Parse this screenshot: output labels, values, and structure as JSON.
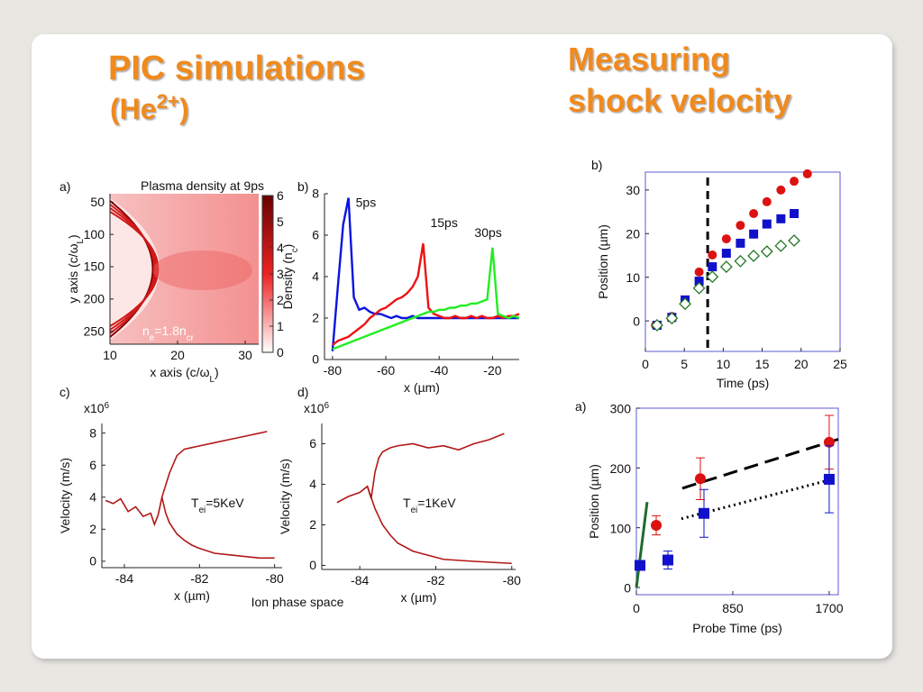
{
  "slide": {
    "title": "PIC simulations",
    "subtitle": [
      "(He",
      "2+",
      ")"
    ],
    "right_title": [
      "Measuring",
      "shock velocity"
    ],
    "caption": "Ion phase space"
  },
  "chart_data": [
    {
      "type": "heatmap",
      "panel": "a)",
      "title": "Plasma density at 9ps",
      "xlabel": [
        "x axis (c/ω",
        "L",
        ")"
      ],
      "ylabel": [
        "y axis (c/ω",
        "L",
        ")"
      ],
      "annotation": [
        "n",
        "e",
        "=1.8n",
        "cr"
      ],
      "xlim": [
        10,
        32
      ],
      "ylim": [
        37,
        270
      ],
      "y_reversed": true,
      "xticks": [
        10,
        20,
        30
      ],
      "yticks": [
        50,
        100,
        150,
        200,
        250
      ],
      "colorbar_lim": [
        0,
        6
      ],
      "colorbar_ticks": [
        0,
        1,
        2,
        3,
        4,
        5,
        6
      ],
      "colormap": [
        "#ffffff",
        "#ee2222",
        "#6a0000"
      ]
    },
    {
      "type": "line",
      "panel": "b)",
      "xlabel": "x (µm)",
      "ylabel": [
        "Density (n",
        "c",
        ")"
      ],
      "xlim": [
        -83,
        -10
      ],
      "ylim": [
        0,
        8
      ],
      "xticks": [
        -80,
        -60,
        -40,
        -20
      ],
      "yticks": [
        0,
        2,
        4,
        6,
        8
      ],
      "x": [
        -80,
        -78,
        -76,
        -74,
        -72,
        -70,
        -68,
        -66,
        -64,
        -62,
        -60,
        -58,
        -56,
        -54,
        -52,
        -50,
        -48,
        -46,
        -44,
        -42,
        -40,
        -38,
        -36,
        -34,
        -32,
        -30,
        -28,
        -26,
        -24,
        -22,
        -20,
        -18,
        -16,
        -14,
        -12,
        -10
      ],
      "series": [
        {
          "name": "5ps",
          "color": "#0a14e0",
          "values": [
            0.4,
            3.5,
            6.5,
            7.8,
            3.0,
            2.4,
            2.5,
            2.3,
            2.2,
            2.2,
            2.1,
            2.0,
            2.1,
            2.0,
            2.0,
            2.1,
            2.0,
            2.0,
            2.0,
            2.0,
            2.0,
            2.0,
            2.0,
            2.0,
            2.0,
            2.0,
            2.0,
            2.0,
            2.0,
            2.0,
            2.0,
            2.0,
            2.0,
            2.0,
            2.0,
            2.0
          ]
        },
        {
          "name": "15ps",
          "color": "#ee1111",
          "values": [
            0.7,
            0.9,
            1.0,
            1.1,
            1.3,
            1.5,
            1.7,
            2.0,
            2.2,
            2.4,
            2.5,
            2.7,
            2.9,
            3.0,
            3.2,
            3.5,
            4.0,
            5.6,
            2.5,
            2.2,
            2.1,
            2.0,
            2.0,
            2.1,
            2.0,
            2.0,
            2.1,
            2.0,
            2.1,
            2.0,
            2.0,
            2.1,
            2.0,
            2.1,
            2.1,
            2.2
          ]
        },
        {
          "name": "30ps",
          "color": "#22ee22",
          "values": [
            0.5,
            0.6,
            0.7,
            0.8,
            0.9,
            1.0,
            1.1,
            1.2,
            1.3,
            1.4,
            1.5,
            1.6,
            1.7,
            1.8,
            1.9,
            2.0,
            2.1,
            2.2,
            2.3,
            2.3,
            2.4,
            2.4,
            2.5,
            2.5,
            2.6,
            2.6,
            2.7,
            2.7,
            2.8,
            2.9,
            5.4,
            2.2,
            2.1,
            2.0,
            2.1,
            2.0
          ]
        }
      ]
    },
    {
      "type": "line",
      "panel": "c)",
      "multiplier": [
        "x10",
        "6"
      ],
      "xlabel": "x (µm)",
      "ylabel": "Velocity (m/s)",
      "annotation": [
        "T",
        "ei",
        "=5KeV"
      ],
      "xlim": [
        -84.6,
        -79.8
      ],
      "ylim": [
        -0.4,
        8.6
      ],
      "xticks": [
        -84,
        -82,
        -80
      ],
      "yticks": [
        0,
        2,
        4,
        6,
        8
      ],
      "series": [
        {
          "color": "#b01818",
          "x": [
            -84.5,
            -84.3,
            -84.1,
            -83.9,
            -83.7,
            -83.5,
            -83.3,
            -83.2,
            -83.1,
            -83.0,
            -82.8,
            -82.6,
            -82.4,
            -82.2,
            -82.0,
            -81.6,
            -81.2,
            -80.8,
            -80.4,
            -80.2
          ],
          "values": [
            3.8,
            3.6,
            3.9,
            3.1,
            3.4,
            2.8,
            3.0,
            2.3,
            2.9,
            4.0,
            5.5,
            6.6,
            7.0,
            7.1,
            7.2,
            7.4,
            7.6,
            7.8,
            8.0,
            8.1
          ]
        },
        {
          "color": "#b01818",
          "x": [
            -83.0,
            -82.9,
            -82.8,
            -82.6,
            -82.4,
            -82.2,
            -82.0,
            -81.6,
            -81.2,
            -80.8,
            -80.4,
            -80.0
          ],
          "values": [
            4.0,
            3.0,
            2.4,
            1.7,
            1.3,
            1.0,
            0.8,
            0.5,
            0.4,
            0.3,
            0.2,
            0.2
          ]
        }
      ]
    },
    {
      "type": "line",
      "panel": "d)",
      "multiplier": [
        "x10",
        "6"
      ],
      "xlabel": "x (µm)",
      "ylabel": "Velocity (m/s)",
      "annotation": [
        "T",
        "ei",
        "=1KeV"
      ],
      "xlim": [
        -85,
        -79.9
      ],
      "ylim": [
        -0.2,
        7
      ],
      "xticks": [
        -84,
        -82,
        -80
      ],
      "yticks": [
        0,
        2,
        4,
        6
      ],
      "series": [
        {
          "color": "#b01818",
          "x": [
            -84.6,
            -84.3,
            -84.0,
            -83.8,
            -83.7,
            -83.6,
            -83.5,
            -83.4,
            -83.2,
            -83.0,
            -82.6,
            -82.2,
            -81.8,
            -81.4,
            -81.0,
            -80.6,
            -80.2
          ],
          "values": [
            3.1,
            3.4,
            3.6,
            3.9,
            3.3,
            4.6,
            5.3,
            5.6,
            5.8,
            5.9,
            6.0,
            5.8,
            5.9,
            5.7,
            6.0,
            6.2,
            6.5
          ]
        },
        {
          "color": "#b01818",
          "x": [
            -83.8,
            -83.6,
            -83.4,
            -83.2,
            -83.0,
            -82.6,
            -82.2,
            -81.8,
            -81.4,
            -81.0,
            -80.5,
            -80.0
          ],
          "values": [
            3.9,
            2.8,
            2.0,
            1.5,
            1.1,
            0.7,
            0.5,
            0.3,
            0.25,
            0.2,
            0.15,
            0.1
          ]
        }
      ]
    },
    {
      "type": "scatter",
      "panel": "b)",
      "xlabel": "Time (ps)",
      "ylabel": "Position (µm)",
      "xlim": [
        0,
        25
      ],
      "ylim": [
        -7,
        34.1
      ],
      "xticks": [
        0,
        5,
        10,
        15,
        20,
        25
      ],
      "yticks": [
        0,
        10,
        20,
        30
      ],
      "vlines": [
        8
      ],
      "series": [
        {
          "color": "#dd1111",
          "marker": "circle",
          "x": [
            1.3,
            3.4,
            5.1,
            6.9,
            8.6,
            10.4,
            12.2,
            13.9,
            15.6,
            17.4,
            19.1,
            20.8
          ],
          "values": [
            -1,
            1,
            4.5,
            11.2,
            15.1,
            18.8,
            21.9,
            24.6,
            27.3,
            30,
            32,
            33.7
          ]
        },
        {
          "color": "#1111cc",
          "marker": "square",
          "x": [
            1.5,
            3.4,
            5.1,
            6.9,
            8.6,
            10.4,
            12.2,
            13.9,
            15.6,
            17.4,
            19.1
          ],
          "values": [
            -1,
            0.8,
            4.8,
            9.1,
            12.4,
            15.5,
            17.8,
            19.9,
            22.2,
            23.4,
            24.6
          ]
        },
        {
          "color": "#227722",
          "marker": "diamond-open",
          "x": [
            1.5,
            3.4,
            5.1,
            6.9,
            8.6,
            10.4,
            12.2,
            13.9,
            15.6,
            17.4,
            19.1
          ],
          "values": [
            -1,
            0.6,
            3.9,
            7.5,
            10.1,
            12.4,
            13.7,
            14.9,
            15.9,
            17.2,
            18.4
          ]
        }
      ]
    },
    {
      "type": "scatter",
      "panel": "a)",
      "xlabel": "Probe Time (ps)",
      "ylabel": "Position (µm)",
      "xlim": [
        0,
        1780
      ],
      "ylim": [
        -12,
        300
      ],
      "xticks": [
        0,
        850,
        1700
      ],
      "yticks": [
        0,
        100,
        200,
        300
      ],
      "series": [
        {
          "color": "#dd1111",
          "marker": "circle",
          "x": [
            175,
            564,
            1700
          ],
          "values": [
            104,
            182,
            243
          ],
          "errors": [
            16,
            35,
            45
          ]
        },
        {
          "color": "#1111cc",
          "marker": "square",
          "x": [
            32,
            278,
            596,
            1700
          ],
          "values": [
            37,
            46,
            124,
            181
          ],
          "errors": [
            null,
            15,
            40,
            56
          ]
        }
      ],
      "fit_lines": [
        {
          "color": "#1e6b2e",
          "style": "solid",
          "x": [
            0,
            95
          ],
          "values": [
            0,
            143
          ]
        },
        {
          "color": "#000000",
          "style": "dashed",
          "x": [
            405,
            1780
          ],
          "values": [
            166,
            248
          ]
        },
        {
          "color": "#000000",
          "style": "dotted",
          "x": [
            397,
            1745
          ],
          "values": [
            115,
            182
          ]
        }
      ]
    }
  ]
}
